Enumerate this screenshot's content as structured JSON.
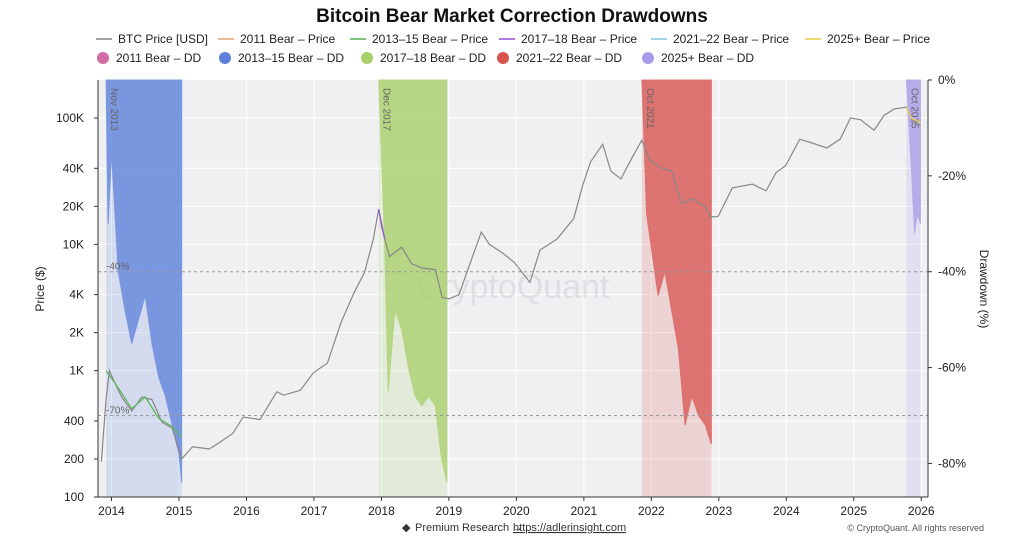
{
  "chart_data": {
    "type": "line",
    "title": "Bitcoin Bear Market Correction Drawdowns",
    "ylabel": "Price ($)",
    "y2label": "Drawdown (%)",
    "yscale": "log",
    "ylim": [
      100,
      200000
    ],
    "y2lim": [
      -87,
      0
    ],
    "xlim": [
      2013.8,
      2026.1
    ],
    "xticks": [
      "2014",
      "2015",
      "2016",
      "2017",
      "2018",
      "2019",
      "2020",
      "2021",
      "2022",
      "2023",
      "2024",
      "2025",
      "2026"
    ],
    "yticks": [
      "100",
      "200",
      "400",
      "1K",
      "2K",
      "4K",
      "10K",
      "20K",
      "40K",
      "100K"
    ],
    "y2ticks": [
      "0%",
      "-20%",
      "-40%",
      "-60%",
      "-80%"
    ],
    "grid": true,
    "legend_position": "top",
    "legend": [
      {
        "label": "BTC Price [USD]",
        "kind": "line",
        "color": "#888888"
      },
      {
        "label": "2011 Bear – Price",
        "kind": "line",
        "color": "#e8a87c"
      },
      {
        "label": "2013–15 Bear – Price",
        "kind": "line",
        "color": "#5cb85c"
      },
      {
        "label": "2017–18 Bear – Price",
        "kind": "line",
        "color": "#9b59d6"
      },
      {
        "label": "2021–22 Bear – Price",
        "kind": "line",
        "color": "#8ecae6"
      },
      {
        "label": "2025+ Bear – Price",
        "kind": "line",
        "color": "#e8d44d"
      },
      {
        "label": "2011 Bear – DD",
        "kind": "dot",
        "color": "#d36ba6"
      },
      {
        "label": "2013–15 Bear – DD",
        "kind": "dot",
        "color": "#5b7fdb"
      },
      {
        "label": "2017–18 Bear – DD",
        "kind": "dot",
        "color": "#a8d06a"
      },
      {
        "label": "2021–22 Bear – DD",
        "kind": "dot",
        "color": "#d9534f"
      },
      {
        "label": "2025+ Bear – DD",
        "kind": "dot",
        "color": "#a99be8"
      }
    ],
    "reference_lines": [
      {
        "label": "-40%",
        "dd": -40
      },
      {
        "label": "-70%",
        "dd": -70
      }
    ],
    "price_series": {
      "name": "BTC Price [USD]",
      "points": [
        [
          2013.85,
          190
        ],
        [
          2013.92,
          600
        ],
        [
          2013.97,
          1000
        ],
        [
          2014.05,
          800
        ],
        [
          2014.15,
          620
        ],
        [
          2014.3,
          480
        ],
        [
          2014.45,
          620
        ],
        [
          2014.6,
          590
        ],
        [
          2014.75,
          390
        ],
        [
          2014.9,
          350
        ],
        [
          2015.04,
          200
        ],
        [
          2015.2,
          250
        ],
        [
          2015.45,
          240
        ],
        [
          2015.6,
          270
        ],
        [
          2015.8,
          320
        ],
        [
          2015.95,
          430
        ],
        [
          2016.2,
          410
        ],
        [
          2016.45,
          680
        ],
        [
          2016.55,
          640
        ],
        [
          2016.8,
          700
        ],
        [
          2016.99,
          960
        ],
        [
          2017.2,
          1150
        ],
        [
          2017.4,
          2400
        ],
        [
          2017.6,
          4200
        ],
        [
          2017.75,
          6000
        ],
        [
          2017.88,
          11000
        ],
        [
          2017.96,
          19000
        ],
        [
          2018.05,
          11000
        ],
        [
          2018.12,
          8000
        ],
        [
          2018.3,
          9500
        ],
        [
          2018.45,
          7000
        ],
        [
          2018.6,
          6500
        ],
        [
          2018.8,
          6300
        ],
        [
          2018.9,
          3800
        ],
        [
          2019.0,
          3700
        ],
        [
          2019.15,
          4000
        ],
        [
          2019.35,
          8000
        ],
        [
          2019.48,
          12500
        ],
        [
          2019.6,
          10000
        ],
        [
          2019.8,
          8500
        ],
        [
          2019.97,
          7200
        ],
        [
          2020.2,
          5000
        ],
        [
          2020.35,
          9000
        ],
        [
          2020.6,
          11000
        ],
        [
          2020.85,
          16000
        ],
        [
          2020.98,
          29000
        ],
        [
          2021.1,
          45000
        ],
        [
          2021.28,
          62000
        ],
        [
          2021.4,
          38000
        ],
        [
          2021.55,
          33000
        ],
        [
          2021.7,
          47000
        ],
        [
          2021.86,
          67000
        ],
        [
          2021.97,
          47000
        ],
        [
          2022.15,
          40000
        ],
        [
          2022.3,
          38000
        ],
        [
          2022.45,
          21000
        ],
        [
          2022.6,
          23000
        ],
        [
          2022.8,
          20000
        ],
        [
          2022.88,
          16500
        ],
        [
          2022.99,
          16600
        ],
        [
          2023.2,
          28000
        ],
        [
          2023.5,
          30000
        ],
        [
          2023.7,
          26500
        ],
        [
          2023.85,
          37000
        ],
        [
          2023.99,
          42000
        ],
        [
          2024.2,
          68000
        ],
        [
          2024.4,
          63000
        ],
        [
          2024.6,
          58000
        ],
        [
          2024.8,
          68000
        ],
        [
          2024.95,
          100000
        ],
        [
          2025.1,
          97000
        ],
        [
          2025.3,
          80000
        ],
        [
          2025.45,
          105000
        ],
        [
          2025.6,
          118000
        ],
        [
          2025.78,
          122000
        ],
        [
          2025.88,
          92000
        ],
        [
          2025.99,
          88000
        ]
      ]
    },
    "bear_price_series": [
      {
        "name": "2013–15 Bear – Price",
        "points": [
          [
            2013.92,
            1000
          ],
          [
            2014.05,
            800
          ],
          [
            2014.3,
            500
          ],
          [
            2014.5,
            620
          ],
          [
            2014.7,
            420
          ],
          [
            2014.9,
            360
          ],
          [
            2015.04,
            300
          ]
        ]
      },
      {
        "name": "2017–18 Bear – Price",
        "points": [
          [
            2017.96,
            19000
          ],
          [
            2018.0,
            14000
          ],
          [
            2018.05,
            11000
          ]
        ]
      },
      {
        "name": "2025+ Bear – Price",
        "points": [
          [
            2025.78,
            122000
          ],
          [
            2025.85,
            100000
          ],
          [
            2025.99,
            92000
          ]
        ]
      }
    ],
    "drawdown_series": [
      {
        "name": "2013–15 Bear – DD",
        "label": "Nov 2013",
        "start": 2013.92,
        "end": 2015.04,
        "points": [
          [
            2013.92,
            0
          ],
          [
            2013.95,
            -30
          ],
          [
            2014.0,
            -15
          ],
          [
            2014.1,
            -40
          ],
          [
            2014.2,
            -48
          ],
          [
            2014.3,
            -55
          ],
          [
            2014.4,
            -50
          ],
          [
            2014.5,
            -45
          ],
          [
            2014.6,
            -55
          ],
          [
            2014.7,
            -62
          ],
          [
            2014.8,
            -66
          ],
          [
            2014.9,
            -72
          ],
          [
            2015.0,
            -78
          ],
          [
            2015.04,
            -84
          ]
        ]
      },
      {
        "name": "2017–18 Bear – DD",
        "label": "Dec 2017",
        "start": 2017.96,
        "end": 2018.97,
        "points": [
          [
            2017.96,
            0
          ],
          [
            2018.05,
            -35
          ],
          [
            2018.1,
            -65
          ],
          [
            2018.2,
            -48
          ],
          [
            2018.3,
            -52
          ],
          [
            2018.4,
            -60
          ],
          [
            2018.5,
            -66
          ],
          [
            2018.6,
            -68
          ],
          [
            2018.7,
            -66
          ],
          [
            2018.8,
            -68
          ],
          [
            2018.88,
            -78
          ],
          [
            2018.97,
            -84
          ]
        ]
      },
      {
        "name": "2021–22 Bear – DD",
        "label": "Oct 2021",
        "start": 2021.86,
        "end": 2022.89,
        "points": [
          [
            2021.86,
            0
          ],
          [
            2021.93,
            -28
          ],
          [
            2022.0,
            -35
          ],
          [
            2022.1,
            -45
          ],
          [
            2022.2,
            -40
          ],
          [
            2022.3,
            -48
          ],
          [
            2022.4,
            -56
          ],
          [
            2022.5,
            -72
          ],
          [
            2022.6,
            -66
          ],
          [
            2022.7,
            -70
          ],
          [
            2022.8,
            -72
          ],
          [
            2022.89,
            -76
          ]
        ]
      },
      {
        "name": "2025+ Bear – DD",
        "label": "Oct 2025",
        "start": 2025.78,
        "end": 2025.99,
        "points": [
          [
            2025.78,
            0
          ],
          [
            2025.82,
            -10
          ],
          [
            2025.86,
            -20
          ],
          [
            2025.9,
            -32
          ],
          [
            2025.94,
            -28
          ],
          [
            2025.99,
            -30
          ]
        ]
      }
    ],
    "watermark": "CryptoQuant",
    "footer": {
      "text": "Premium Research → ",
      "link": "https://adlerinsight.com",
      "copyright": "© CryptoQuant. All rights reserved"
    }
  }
}
